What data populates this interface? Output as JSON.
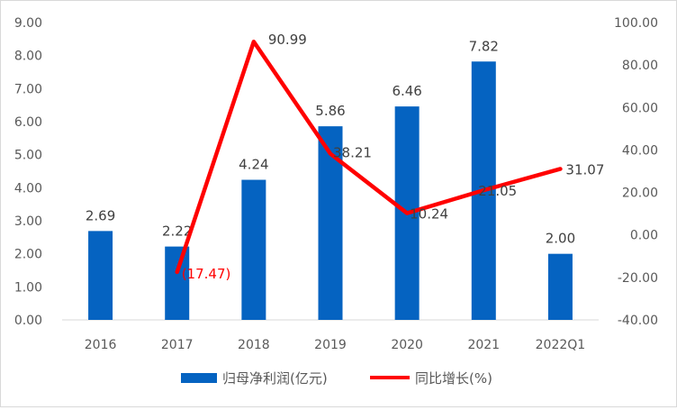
{
  "chart_data": {
    "type": "bar+line",
    "categories": [
      "2016",
      "2017",
      "2018",
      "2019",
      "2020",
      "2021",
      "2022Q1"
    ],
    "series": [
      {
        "name": "归母净利润(亿元)",
        "type": "bar",
        "axis": "left",
        "color": "#0563C1",
        "values": [
          2.69,
          2.22,
          4.24,
          5.86,
          6.46,
          7.82,
          2.0
        ],
        "labels": [
          "2.69",
          "2.22",
          "4.24",
          "5.86",
          "6.46",
          "7.82",
          "2.00"
        ]
      },
      {
        "name": "同比增长(%)",
        "type": "line",
        "axis": "right",
        "color": "#FF0000",
        "values": [
          null,
          -17.47,
          90.99,
          38.21,
          10.24,
          21.05,
          31.07
        ],
        "labels": [
          "",
          "(17.47)",
          "90.99",
          "38.21",
          "10.24",
          "21.05",
          "31.07"
        ]
      }
    ],
    "y_left": {
      "min": 0,
      "max": 9,
      "step": 1,
      "ticks": [
        "0.00",
        "1.00",
        "2.00",
        "3.00",
        "4.00",
        "5.00",
        "6.00",
        "7.00",
        "8.00",
        "9.00"
      ]
    },
    "y_right": {
      "min": -40,
      "max": 100,
      "step": 20,
      "ticks": [
        "-40.00",
        "-20.00",
        "0.00",
        "20.00",
        "40.00",
        "60.00",
        "80.00",
        "100.00"
      ]
    },
    "grid": false,
    "legend": "bottom"
  }
}
